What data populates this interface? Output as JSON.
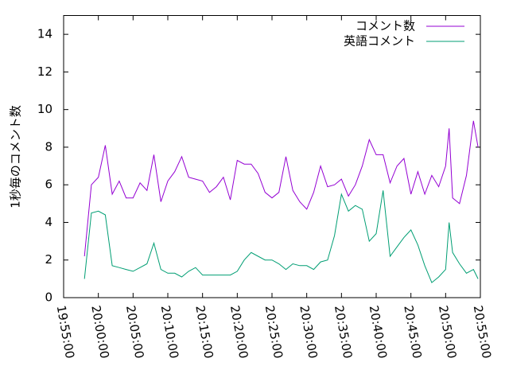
{
  "chart_data": {
    "type": "line",
    "ylabel": "1秒毎のコメント数",
    "x": [
      "19:58:00",
      "19:59:00",
      "20:00:00",
      "20:01:00",
      "20:02:00",
      "20:03:00",
      "20:04:00",
      "20:05:00",
      "20:06:00",
      "20:07:00",
      "20:08:00",
      "20:09:00",
      "20:10:00",
      "20:11:00",
      "20:12:00",
      "20:13:00",
      "20:14:00",
      "20:15:00",
      "20:16:00",
      "20:17:00",
      "20:18:00",
      "20:19:00",
      "20:20:00",
      "20:21:00",
      "20:22:00",
      "20:23:00",
      "20:24:00",
      "20:25:00",
      "20:26:00",
      "20:27:00",
      "20:28:00",
      "20:29:00",
      "20:30:00",
      "20:31:00",
      "20:32:00",
      "20:33:00",
      "20:34:00",
      "20:35:00",
      "20:36:00",
      "20:37:00",
      "20:38:00",
      "20:39:00",
      "20:40:00",
      "20:41:00",
      "20:42:00",
      "20:43:00",
      "20:44:00",
      "20:45:00",
      "20:46:00",
      "20:47:00",
      "20:48:00",
      "20:49:00",
      "20:50:00",
      "20:50:30",
      "20:51:00",
      "20:52:00",
      "20:53:00",
      "20:54:00",
      "20:54:40"
    ],
    "series": [
      {
        "name": "コメント数",
        "color": "#9400d3",
        "values": [
          2.2,
          6.0,
          6.4,
          8.1,
          5.5,
          6.2,
          5.3,
          5.3,
          6.1,
          5.7,
          7.6,
          5.1,
          6.2,
          6.7,
          7.5,
          6.4,
          6.3,
          6.2,
          5.6,
          5.9,
          6.4,
          5.2,
          7.3,
          7.1,
          7.1,
          6.6,
          5.6,
          5.3,
          5.6,
          7.5,
          5.7,
          5.1,
          4.7,
          5.6,
          7.0,
          5.9,
          6.0,
          6.3,
          5.4,
          6.0,
          7.0,
          8.4,
          7.6,
          7.6,
          6.1,
          7.0,
          7.4,
          5.5,
          6.7,
          5.5,
          6.5,
          5.9,
          7.0,
          9.0,
          5.3,
          5.0,
          6.5,
          9.4,
          8.0
        ]
      },
      {
        "name": "英語コメント",
        "color": "#009e73",
        "values": [
          1.0,
          4.5,
          4.6,
          4.4,
          1.7,
          1.6,
          1.5,
          1.4,
          1.6,
          1.8,
          2.9,
          1.5,
          1.3,
          1.3,
          1.1,
          1.4,
          1.6,
          1.2,
          1.2,
          1.2,
          1.2,
          1.2,
          1.4,
          2.0,
          2.4,
          2.2,
          2.0,
          2.0,
          1.8,
          1.5,
          1.8,
          1.7,
          1.7,
          1.5,
          1.9,
          2.0,
          3.3,
          5.5,
          4.6,
          4.9,
          4.7,
          3.0,
          3.4,
          5.7,
          2.2,
          2.7,
          3.2,
          3.6,
          2.8,
          1.7,
          0.8,
          1.1,
          1.5,
          4.0,
          2.4,
          1.8,
          1.3,
          1.5,
          1.0
        ]
      }
    ],
    "xlim": [
      "19:55:00",
      "20:55:00"
    ],
    "xticks": [
      "19:55:00",
      "20:00:00",
      "20:05:00",
      "20:10:00",
      "20:15:00",
      "20:20:00",
      "20:25:00",
      "20:30:00",
      "20:35:00",
      "20:40:00",
      "20:45:00",
      "20:50:00",
      "20:55:00"
    ],
    "ylim": [
      0,
      15
    ],
    "yticks": [
      0,
      2,
      4,
      6,
      8,
      10,
      12,
      14
    ],
    "legend": "top-right"
  }
}
